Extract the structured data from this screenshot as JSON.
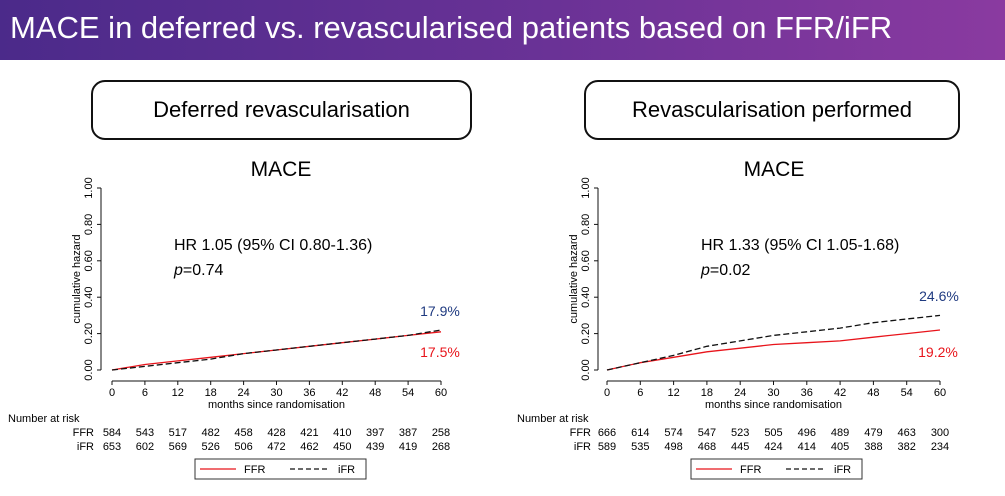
{
  "page": {
    "title": "MACE in deferred vs. revascularised patients based on FFR/iFR"
  },
  "panels": [
    {
      "header": "Deferred revascularisation",
      "chart_title": "MACE",
      "hr_text": "HR 1.05 (95% CI 0.80-1.36)",
      "p_label": "p",
      "p_value": "=0.74",
      "label_ifr": "17.9%",
      "label_ffr": "17.5%",
      "risk_ffr": [
        "584",
        "543",
        "517",
        "482",
        "458",
        "428",
        "421",
        "410",
        "397",
        "387",
        "258"
      ],
      "risk_ifr": [
        "653",
        "602",
        "569",
        "526",
        "506",
        "472",
        "462",
        "450",
        "439",
        "419",
        "268"
      ]
    },
    {
      "header": "Revascularisation performed",
      "chart_title": "MACE",
      "hr_text": "HR 1.33 (95% CI 1.05-1.68)",
      "p_label": "p",
      "p_value": "=0.02",
      "label_ifr": "24.6%",
      "label_ffr": "19.2%",
      "risk_ffr": [
        "666",
        "614",
        "574",
        "547",
        "523",
        "505",
        "496",
        "489",
        "479",
        "463",
        "300"
      ],
      "risk_ifr": [
        "589",
        "535",
        "498",
        "468",
        "445",
        "424",
        "414",
        "405",
        "388",
        "382",
        "234"
      ]
    }
  ],
  "common": {
    "ylabel": "cumulative hazard",
    "xlabel": "months since randomisation",
    "risk_title": "Number at risk",
    "risk_row_ffr": "FFR",
    "risk_row_ifr": "iFR",
    "legend_ffr": "FFR",
    "legend_ifr": "iFR",
    "colors": {
      "ffr": "#e8141b",
      "ifr": "#111111",
      "ifr_label": "#1f3a80",
      "ffr_label": "#e8141b"
    }
  },
  "chart_data": [
    {
      "type": "line",
      "title": "MACE",
      "xlabel": "months since randomisation",
      "ylabel": "cumulative hazard",
      "x_ticks": [
        0,
        6,
        12,
        18,
        24,
        30,
        36,
        42,
        48,
        54,
        60
      ],
      "y_ticks": [
        "0.00",
        "0.20",
        "0.40",
        "0.60",
        "0.80",
        "1.00"
      ],
      "xlim": [
        0,
        60
      ],
      "ylim": [
        0,
        1
      ],
      "series": [
        {
          "name": "FFR",
          "x": [
            0,
            6,
            12,
            18,
            24,
            30,
            36,
            42,
            48,
            54,
            60
          ],
          "values": [
            0,
            0.03,
            0.05,
            0.07,
            0.09,
            0.11,
            0.13,
            0.15,
            0.17,
            0.19,
            0.21
          ]
        },
        {
          "name": "iFR",
          "x": [
            0,
            6,
            12,
            18,
            24,
            30,
            36,
            42,
            48,
            54,
            60
          ],
          "values": [
            0,
            0.02,
            0.04,
            0.06,
            0.09,
            0.11,
            0.13,
            0.15,
            0.17,
            0.19,
            0.22
          ]
        }
      ]
    },
    {
      "type": "line",
      "title": "MACE",
      "xlabel": "months since randomisation",
      "ylabel": "cumulative hazard",
      "x_ticks": [
        0,
        6,
        12,
        18,
        24,
        30,
        36,
        42,
        48,
        54,
        60
      ],
      "y_ticks": [
        "0.00",
        "0.20",
        "0.40",
        "0.60",
        "0.80",
        "1.00"
      ],
      "xlim": [
        0,
        60
      ],
      "ylim": [
        0,
        1
      ],
      "series": [
        {
          "name": "FFR",
          "x": [
            0,
            6,
            12,
            18,
            24,
            30,
            36,
            42,
            48,
            54,
            60
          ],
          "values": [
            0,
            0.04,
            0.07,
            0.1,
            0.12,
            0.14,
            0.15,
            0.16,
            0.18,
            0.2,
            0.22
          ]
        },
        {
          "name": "iFR",
          "x": [
            0,
            6,
            12,
            18,
            24,
            30,
            36,
            42,
            48,
            54,
            60
          ],
          "values": [
            0,
            0.04,
            0.08,
            0.13,
            0.16,
            0.19,
            0.21,
            0.23,
            0.26,
            0.28,
            0.3
          ]
        }
      ]
    }
  ]
}
